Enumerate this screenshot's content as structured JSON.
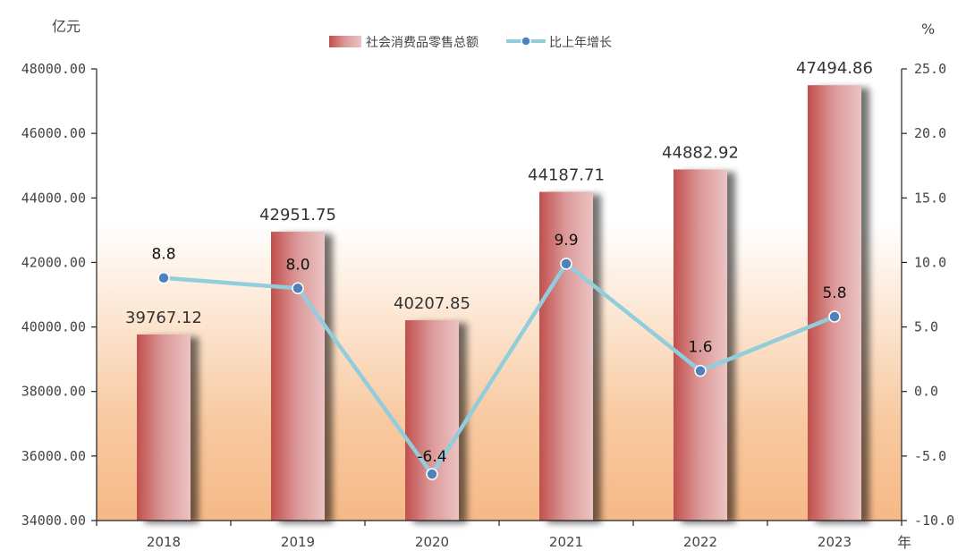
{
  "chart_data": {
    "type": "bar",
    "left_unit": "亿元",
    "right_unit": "%",
    "x_unit": "年",
    "categories": [
      "2018",
      "2019",
      "2020",
      "2021",
      "2022",
      "2023"
    ],
    "series": [
      {
        "name": "社会消费品零售总额",
        "type": "bar",
        "axis": "left",
        "values": [
          39767.12,
          42951.75,
          40207.85,
          44187.71,
          44882.92,
          47494.86
        ],
        "labels": [
          "39767.12",
          "42951.75",
          "40207.85",
          "44187.71",
          "44882.92",
          "47494.86"
        ],
        "color_dark": "#c0504d",
        "color_light": "#ecc3c3"
      },
      {
        "name": "比上年增长",
        "type": "line",
        "axis": "right",
        "values": [
          8.8,
          8.0,
          -6.4,
          9.9,
          1.6,
          5.8
        ],
        "labels": [
          "8.8",
          "8.0",
          "-6.4",
          "9.9",
          "1.6",
          "5.8"
        ],
        "line_color": "#92cddc",
        "marker_color": "#4f81bd"
      }
    ],
    "left_axis": {
      "ylim": [
        34000,
        48000
      ],
      "ticks": [
        34000,
        36000,
        38000,
        40000,
        42000,
        44000,
        46000,
        48000
      ],
      "tick_labels": [
        "34000.00",
        "36000.00",
        "38000.00",
        "40000.00",
        "42000.00",
        "44000.00",
        "46000.00",
        "48000.00"
      ]
    },
    "right_axis": {
      "ylim": [
        -10,
        25
      ],
      "ticks": [
        -10,
        -5,
        0,
        5,
        10,
        15,
        20,
        25
      ],
      "tick_labels": [
        "-10.0",
        "-5.0",
        "0.0",
        "5.0",
        "10.0",
        "15.0",
        "20.0",
        "25.0"
      ]
    },
    "legend_position": "top-center",
    "grid": false,
    "background": "gradient white to orange"
  }
}
